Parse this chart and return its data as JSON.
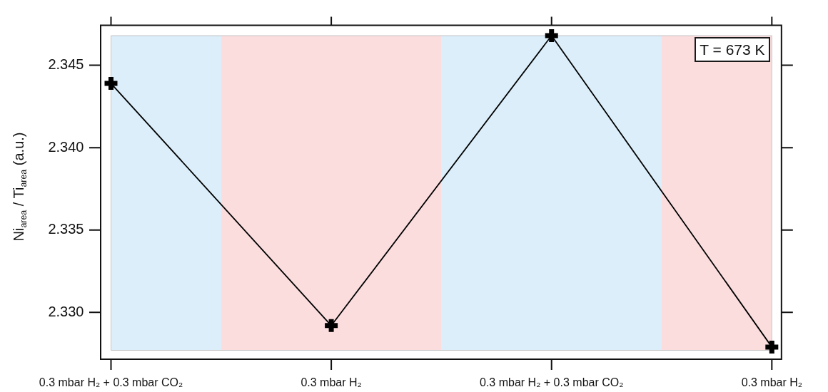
{
  "chart_data": {
    "type": "line",
    "ylabel": "Ni$_{area}$ / Ti$_{area}$ (a.u.)",
    "categories": [
      "0.3 mbar H₂ + 0.3 mbar CO₂",
      "0.3 mbar H₂",
      "0.3 mbar H₂ + 0.3 mbar CO₂",
      "0.3 mbar H₂"
    ],
    "series": [
      {
        "color": "#000000",
        "values": [
          2.3439,
          2.3292,
          2.3468,
          2.3279
        ]
      }
    ],
    "ylim": [
      2.3277,
      2.3468
    ],
    "yticks": [
      {
        "value": 2.33,
        "label": "2.330"
      },
      2.335,
      {
        "value": 2.34,
        "label": "2.340"
      },
      2.345
    ],
    "annotations": [
      "T = 673 K"
    ],
    "marker": "cross"
  }
}
